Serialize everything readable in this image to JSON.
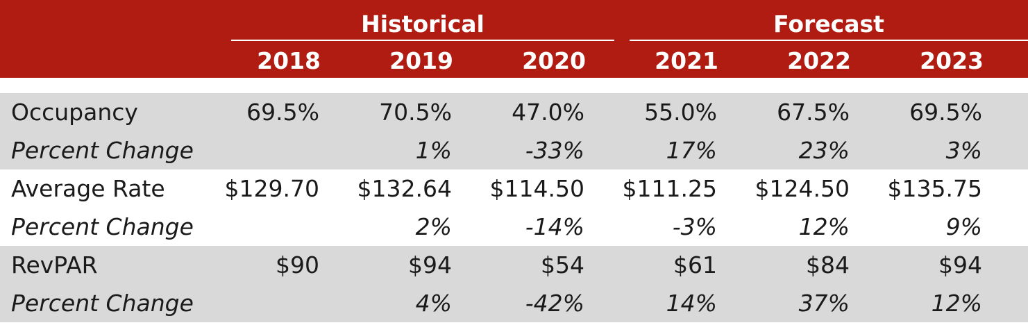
{
  "header": {
    "groups": {
      "historical": "Historical",
      "forecast": "Forecast"
    },
    "years": [
      "2018",
      "2019",
      "2020",
      "2021",
      "2022",
      "2023"
    ],
    "background_color": "#b01c12",
    "text_color": "#ffffff"
  },
  "rows": [
    {
      "label": "Occupancy",
      "values": [
        "69.5%",
        "70.5%",
        "47.0%",
        "55.0%",
        "67.5%",
        "69.5%"
      ]
    },
    {
      "label": "Percent Change",
      "values": [
        "",
        "1%",
        "-33%",
        "17%",
        "23%",
        "3%"
      ]
    },
    {
      "label": "Average Rate",
      "values": [
        "$129.70",
        "$132.64",
        "$114.50",
        "$111.25",
        "$124.50",
        "$135.75"
      ]
    },
    {
      "label": "Percent Change",
      "values": [
        "",
        "2%",
        "-14%",
        "-3%",
        "12%",
        "9%"
      ]
    },
    {
      "label": "RevPAR",
      "values": [
        "$90",
        "$94",
        "$54",
        "$61",
        "$84",
        "$94"
      ]
    },
    {
      "label": "Percent Change",
      "values": [
        "",
        "4%",
        "-42%",
        "14%",
        "37%",
        "12%"
      ]
    }
  ],
  "shade_color": "#d9d9d9"
}
